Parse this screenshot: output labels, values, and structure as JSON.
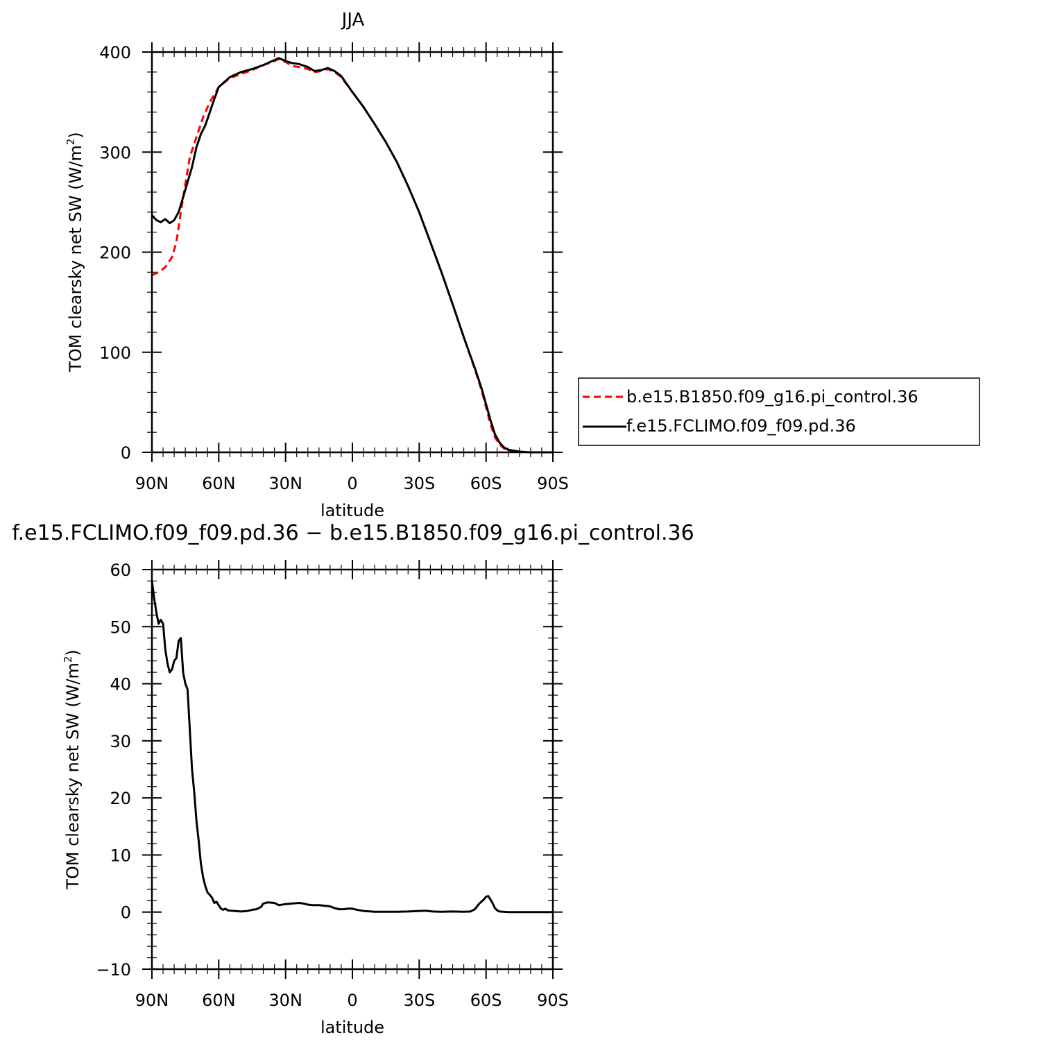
{
  "chart_data": [
    {
      "type": "line",
      "title": "JJA",
      "xlabel": "latitude",
      "ylabel": "TOM clearsky net SW (W/m",
      "ylabel_sup": "2",
      "ylabel_close": ")",
      "xlim": [
        90,
        -90
      ],
      "ylim": [
        0,
        400
      ],
      "x_ticks": [
        90,
        60,
        30,
        0,
        -30,
        -60,
        -90
      ],
      "x_tick_labels": [
        "90N",
        "60N",
        "30N",
        "0",
        "30S",
        "60S",
        "90S"
      ],
      "y_ticks": [
        0,
        100,
        200,
        300,
        400
      ],
      "y_tick_labels": [
        "0",
        "100",
        "200",
        "300",
        "400"
      ],
      "legend_position": "right",
      "series": [
        {
          "name": "b.e15.B1850.f09_g16.pi_control.36",
          "color": "#ff0000",
          "dash": "dashed",
          "points": [
            [
              90,
              177
            ],
            [
              87,
              180
            ],
            [
              84,
              185
            ],
            [
              81,
              195
            ],
            [
              79,
              210
            ],
            [
              77,
              240
            ],
            [
              75,
              268
            ],
            [
              73,
              295
            ],
            [
              70,
              315
            ],
            [
              67,
              335
            ],
            [
              64,
              350
            ],
            [
              60,
              365
            ],
            [
              55,
              374
            ],
            [
              50,
              378
            ],
            [
              45,
              382
            ],
            [
              40,
              387
            ],
            [
              36,
              390
            ],
            [
              33,
              393
            ],
            [
              30,
              390
            ],
            [
              27,
              386
            ],
            [
              24,
              385
            ],
            [
              20,
              383
            ],
            [
              17,
              380
            ],
            [
              14,
              381
            ],
            [
              11,
              383
            ],
            [
              8,
              380
            ],
            [
              5,
              375
            ],
            [
              0,
              360
            ],
            [
              -5,
              345
            ],
            [
              -10,
              328
            ],
            [
              -15,
              310
            ],
            [
              -20,
              290
            ],
            [
              -25,
              266
            ],
            [
              -30,
              240
            ],
            [
              -35,
              210
            ],
            [
              -40,
              180
            ],
            [
              -45,
              148
            ],
            [
              -50,
              115
            ],
            [
              -55,
              83
            ],
            [
              -58,
              62
            ],
            [
              -60,
              45
            ],
            [
              -62,
              28
            ],
            [
              -64,
              15
            ],
            [
              -66,
              8
            ],
            [
              -68,
              4
            ],
            [
              -70,
              2
            ],
            [
              -75,
              0.5
            ],
            [
              -80,
              0
            ],
            [
              -90,
              0
            ]
          ]
        },
        {
          "name": "f.e15.FCLIMO.f09_f09.pd.36",
          "color": "#000000",
          "dash": "solid",
          "points": [
            [
              90,
              237
            ],
            [
              88,
              232
            ],
            [
              86,
              230
            ],
            [
              84,
              233
            ],
            [
              82,
              229
            ],
            [
              80,
              232
            ],
            [
              78,
              240
            ],
            [
              76,
              255
            ],
            [
              74,
              270
            ],
            [
              72,
              285
            ],
            [
              70,
              305
            ],
            [
              68,
              318
            ],
            [
              66,
              327
            ],
            [
              64,
              340
            ],
            [
              62,
              353
            ],
            [
              60,
              365
            ],
            [
              55,
              375
            ],
            [
              50,
              380
            ],
            [
              45,
              383
            ],
            [
              40,
              387
            ],
            [
              36,
              391
            ],
            [
              33,
              394
            ],
            [
              30,
              391
            ],
            [
              27,
              389
            ],
            [
              24,
              388
            ],
            [
              20,
              385
            ],
            [
              17,
              381
            ],
            [
              14,
              382
            ],
            [
              11,
              384
            ],
            [
              8,
              381
            ],
            [
              5,
              376
            ],
            [
              0,
              360
            ],
            [
              -5,
              345
            ],
            [
              -10,
              328
            ],
            [
              -15,
              310
            ],
            [
              -20,
              290
            ],
            [
              -25,
              266
            ],
            [
              -30,
              240
            ],
            [
              -35,
              210
            ],
            [
              -40,
              180
            ],
            [
              -45,
              148
            ],
            [
              -50,
              115
            ],
            [
              -55,
              84
            ],
            [
              -58,
              64
            ],
            [
              -60,
              48
            ],
            [
              -62,
              32
            ],
            [
              -64,
              18
            ],
            [
              -66,
              10
            ],
            [
              -68,
              5
            ],
            [
              -70,
              2.5
            ],
            [
              -75,
              0.7
            ],
            [
              -80,
              0
            ],
            [
              -90,
              0
            ]
          ]
        }
      ]
    },
    {
      "type": "line",
      "title": "f.e15.FCLIMO.f09_f09.pd.36 − b.e15.B1850.f09_g16.pi_control.36",
      "xlabel": "latitude",
      "ylabel": "TOM clearsky net SW (W/m",
      "ylabel_sup": "2",
      "ylabel_close": ")",
      "xlim": [
        90,
        -90
      ],
      "ylim": [
        -10,
        60
      ],
      "x_ticks": [
        90,
        60,
        30,
        0,
        -30,
        -60,
        -90
      ],
      "x_tick_labels": [
        "90N",
        "60N",
        "30N",
        "0",
        "30S",
        "60S",
        "90S"
      ],
      "y_ticks": [
        -10,
        0,
        10,
        20,
        30,
        40,
        50,
        60
      ],
      "y_tick_labels": [
        "−10",
        "0",
        "10",
        "20",
        "30",
        "40",
        "50",
        "60"
      ],
      "series": [
        {
          "color": "#000000",
          "dash": "solid",
          "points": [
            [
              90,
              58
            ],
            [
              89,
              55
            ],
            [
              88,
              52.5
            ],
            [
              87,
              50.5
            ],
            [
              86,
              51.2
            ],
            [
              85,
              50.5
            ],
            [
              84,
              46
            ],
            [
              83,
              43.5
            ],
            [
              82,
              42
            ],
            [
              81,
              42.5
            ],
            [
              80,
              44
            ],
            [
              79,
              44.5
            ],
            [
              78,
              47.5
            ],
            [
              77,
              48
            ],
            [
              76,
              42
            ],
            [
              75,
              40
            ],
            [
              74,
              39
            ],
            [
              73,
              32
            ],
            [
              72,
              25
            ],
            [
              71,
              21
            ],
            [
              70,
              16
            ],
            [
              69,
              12.5
            ],
            [
              68,
              8.5
            ],
            [
              67,
              6
            ],
            [
              66,
              4.5
            ],
            [
              65,
              3.4
            ],
            [
              64,
              3
            ],
            [
              63,
              2.5
            ],
            [
              62,
              1.6
            ],
            [
              61,
              1.8
            ],
            [
              60,
              1.2
            ],
            [
              59,
              0.6
            ],
            [
              58,
              0.4
            ],
            [
              57,
              0.6
            ],
            [
              56,
              0.3
            ],
            [
              53,
              0.2
            ],
            [
              50,
              0.1
            ],
            [
              47,
              0.2
            ],
            [
              45,
              0.4
            ],
            [
              43,
              0.5
            ],
            [
              41,
              0.9
            ],
            [
              40,
              1.5
            ],
            [
              38,
              1.7
            ],
            [
              35,
              1.6
            ],
            [
              33,
              1.2
            ],
            [
              30,
              1.4
            ],
            [
              27,
              1.5
            ],
            [
              24,
              1.6
            ],
            [
              22,
              1.5
            ],
            [
              20,
              1.3
            ],
            [
              18,
              1.2
            ],
            [
              15,
              1.2
            ],
            [
              12,
              1.1
            ],
            [
              10,
              1.0
            ],
            [
              8,
              0.7
            ],
            [
              6,
              0.5
            ],
            [
              4,
              0.5
            ],
            [
              2,
              0.6
            ],
            [
              0,
              0.6
            ],
            [
              -2,
              0.4
            ],
            [
              -5,
              0.2
            ],
            [
              -10,
              0.05
            ],
            [
              -15,
              0.05
            ],
            [
              -20,
              0.05
            ],
            [
              -25,
              0.1
            ],
            [
              -30,
              0.2
            ],
            [
              -33,
              0.25
            ],
            [
              -36,
              0.1
            ],
            [
              -40,
              0.05
            ],
            [
              -45,
              0.1
            ],
            [
              -50,
              0.05
            ],
            [
              -53,
              0.1
            ],
            [
              -55,
              0.5
            ],
            [
              -57,
              1.5
            ],
            [
              -59,
              2.2
            ],
            [
              -60,
              2.7
            ],
            [
              -61,
              2.8
            ],
            [
              -62,
              2.2
            ],
            [
              -63,
              1.5
            ],
            [
              -64,
              0.7
            ],
            [
              -65,
              0.3
            ],
            [
              -66,
              0.1
            ],
            [
              -70,
              0
            ],
            [
              -80,
              0
            ],
            [
              -90,
              0
            ]
          ]
        }
      ]
    }
  ]
}
